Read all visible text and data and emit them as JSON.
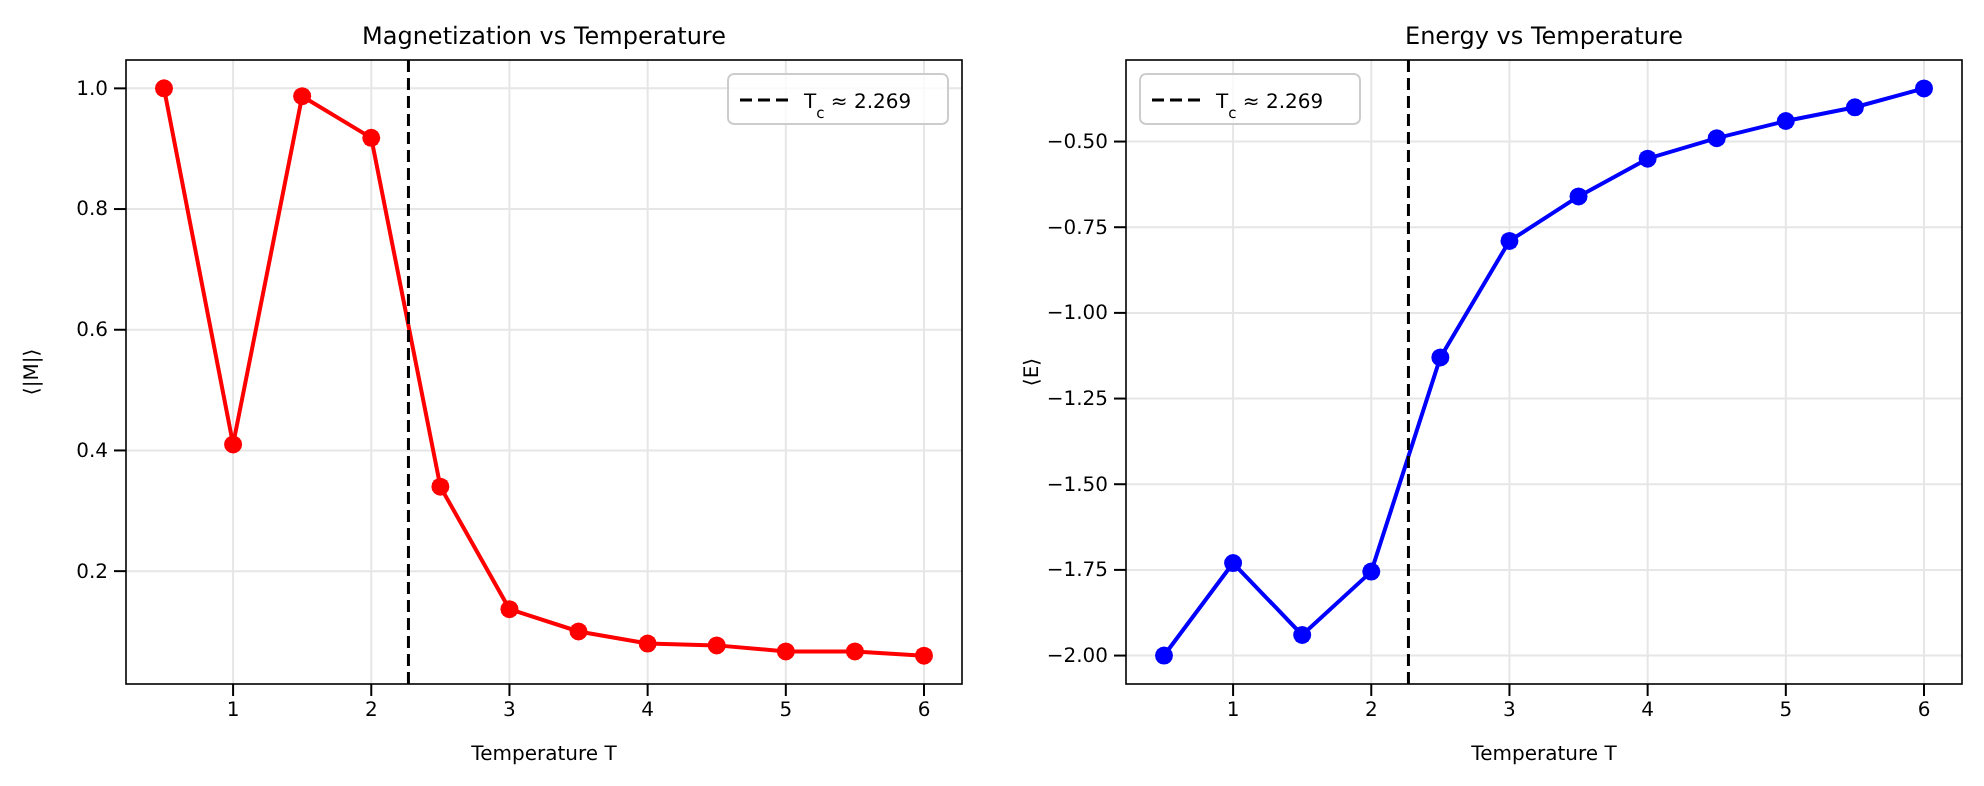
{
  "chart_data": [
    {
      "type": "line",
      "title": "Magnetization vs Temperature",
      "xlabel": "Temperature T",
      "ylabel": "⟨|M|⟩",
      "x": [
        0.5,
        1,
        1.5,
        2,
        2.5,
        3,
        3.5,
        4,
        4.5,
        5,
        5.5,
        6
      ],
      "series": [
        {
          "color": "#ff0000",
          "values": [
            1.0,
            0.41,
            0.987,
            0.918,
            0.34,
            0.137,
            0.1,
            0.08,
            0.077,
            0.067,
            0.067,
            0.06
          ]
        }
      ],
      "xlim": [
        0.225,
        6.275
      ],
      "xticks": [
        1,
        2,
        3,
        4,
        5,
        6
      ],
      "ylim": [
        0.013,
        1.047
      ],
      "yticks": [
        {
          "value": 0.2,
          "label": "0.2"
        },
        {
          "value": 0.4,
          "label": "0.4"
        },
        {
          "value": 0.6,
          "label": "0.6"
        },
        {
          "value": 0.8,
          "label": "0.8"
        },
        {
          "value": 1.0,
          "label": "1.0"
        }
      ],
      "ref_lines": [
        {
          "axis": "x",
          "value": 2.269,
          "label": "T$_{c}$ ≈ 2.269",
          "color": "#000000",
          "line_style": "dashed"
        }
      ],
      "grid": true,
      "legend": "top right",
      "marker": "circle",
      "line_style": "solid"
    },
    {
      "type": "line",
      "title": "Energy vs Temperature",
      "xlabel": "Temperature T",
      "ylabel": "⟨E⟩",
      "x": [
        0.5,
        1,
        1.5,
        2,
        2.5,
        3,
        3.5,
        4,
        4.5,
        5,
        5.5,
        6
      ],
      "series": [
        {
          "color": "#0000ff",
          "values": [
            -2.0,
            -1.73,
            -1.94,
            -1.755,
            -1.13,
            -0.79,
            -0.66,
            -0.55,
            -0.49,
            -0.44,
            -0.4,
            -0.345
          ]
        }
      ],
      "xlim": [
        0.225,
        6.275
      ],
      "xticks": [
        1,
        2,
        3,
        4,
        5,
        6
      ],
      "ylim": [
        -2.083,
        -0.262
      ],
      "yticks": [
        {
          "value": -2.0,
          "label": "−2.00"
        },
        {
          "value": -1.75,
          "label": "−1.75"
        },
        {
          "value": -1.5,
          "label": "−1.50"
        },
        {
          "value": -1.25,
          "label": "−1.25"
        },
        {
          "value": -1.0,
          "label": "−1.00"
        },
        {
          "value": -0.75,
          "label": "−0.75"
        },
        {
          "value": -0.5,
          "label": "−0.50"
        }
      ],
      "ref_lines": [
        {
          "axis": "x",
          "value": 2.269,
          "label": "T$_{c}$ ≈ 2.269",
          "color": "#000000",
          "line_style": "dashed"
        }
      ],
      "grid": true,
      "legend": "top left",
      "marker": "circle",
      "line_style": "solid"
    }
  ]
}
